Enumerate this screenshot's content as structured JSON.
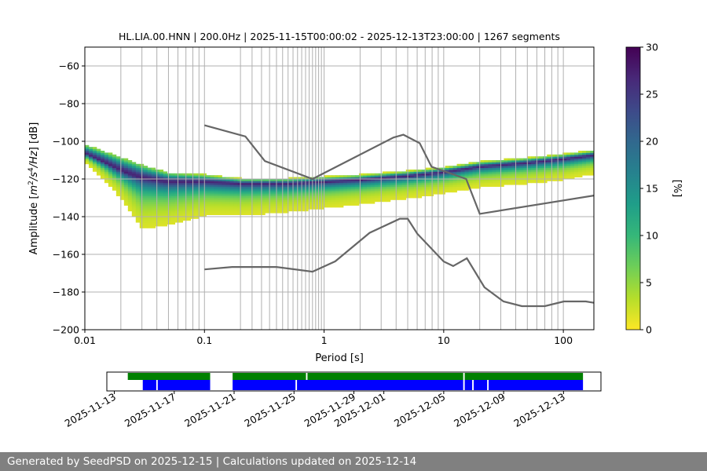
{
  "chart_data": [
    {
      "type": "heatmap",
      "title": "HL.LIA.00.HNN | 200.0Hz | 2025-11-15T00:00:02 - 2025-12-13T23:00:00 | 1267 segments",
      "xlabel": "Period [s]",
      "ylabel_parts": [
        "Amplitude [",
        "m",
        "2",
        "/s",
        "4",
        "/Hz",
        "] [dB]"
      ],
      "xscale": "log",
      "xlim": [
        0.01,
        180
      ],
      "ylim": [
        -200,
        -50
      ],
      "x_ticks": [
        {
          "value": 0.01,
          "label": "0.01"
        },
        {
          "value": 0.1,
          "label": "0.1"
        },
        {
          "value": 1,
          "label": "1"
        },
        {
          "value": 10,
          "label": "10"
        },
        {
          "value": 100,
          "label": "100"
        }
      ],
      "y_ticks": [
        {
          "value": -60,
          "label": "−60"
        },
        {
          "value": -80,
          "label": "−80"
        },
        {
          "value": -100,
          "label": "−100"
        },
        {
          "value": -120,
          "label": "−120"
        },
        {
          "value": -140,
          "label": "−140"
        },
        {
          "value": -160,
          "label": "−160"
        },
        {
          "value": -180,
          "label": "−180"
        },
        {
          "value": -200,
          "label": "−200"
        }
      ],
      "grid": true,
      "colorbar": {
        "label": "[%]",
        "range": [
          0,
          30
        ],
        "ticks": [
          {
            "value": 0,
            "label": "0"
          },
          {
            "value": 5,
            "label": "5"
          },
          {
            "value": 10,
            "label": "10"
          },
          {
            "value": 15,
            "label": "15"
          },
          {
            "value": 20,
            "label": "20"
          },
          {
            "value": 25,
            "label": "25"
          },
          {
            "value": 30,
            "label": "30"
          }
        ],
        "colors": [
          "#fde725",
          "#b5de2b",
          "#6ece58",
          "#35b779",
          "#1f9e89",
          "#26828e",
          "#31688e",
          "#3e4989",
          "#482878",
          "#440154"
        ]
      },
      "psd_density": {
        "description": "Probabilistic PSD: modal amplitude vs period with spread and percent occurrence",
        "mode_curve": [
          {
            "period": 0.01,
            "amp": -107,
            "spread_lo": 4,
            "spread_hi": 4
          },
          {
            "period": 0.015,
            "amp": -112,
            "spread_lo": 5,
            "spread_hi": 9
          },
          {
            "period": 0.02,
            "amp": -116,
            "spread_lo": 6,
            "spread_hi": 14
          },
          {
            "period": 0.03,
            "amp": -120,
            "spread_lo": 6,
            "spread_hi": 26
          },
          {
            "period": 0.05,
            "amp": -122,
            "spread_lo": 4,
            "spread_hi": 22
          },
          {
            "period": 0.1,
            "amp": -122,
            "spread_lo": 3,
            "spread_hi": 17
          },
          {
            "period": 0.2,
            "amp": -123,
            "spread_lo": 2,
            "spread_hi": 16
          },
          {
            "period": 0.5,
            "amp": -123,
            "spread_lo": 2,
            "spread_hi": 14
          },
          {
            "period": 1,
            "amp": -122,
            "spread_lo": 2,
            "spread_hi": 13
          },
          {
            "period": 2,
            "amp": -121,
            "spread_lo": 2,
            "spread_hi": 12
          },
          {
            "period": 5,
            "amp": -119,
            "spread_lo": 2,
            "spread_hi": 11
          },
          {
            "period": 10,
            "amp": -117,
            "spread_lo": 2,
            "spread_hi": 10
          },
          {
            "period": 20,
            "amp": -114,
            "spread_lo": 2,
            "spread_hi": 10
          },
          {
            "period": 50,
            "amp": -112,
            "spread_lo": 2,
            "spread_hi": 10
          },
          {
            "period": 100,
            "amp": -110,
            "spread_lo": 2,
            "spread_hi": 10
          },
          {
            "period": 180,
            "amp": -108,
            "spread_lo": 2,
            "spread_hi": 9
          }
        ],
        "upper_envelope_bumps": [
          {
            "period": 0.03,
            "amp": -84
          },
          {
            "period": 0.5,
            "amp": -92
          },
          {
            "period": 20,
            "amp": -88
          }
        ]
      },
      "series": [
        {
          "name": "NHNM",
          "color": "#666666",
          "points": [
            [
              0.1,
              -91.5
            ],
            [
              0.22,
              -97.4
            ],
            [
              0.32,
              -110.5
            ],
            [
              0.8,
              -120
            ],
            [
              3.8,
              -98
            ],
            [
              4.6,
              -96.5
            ],
            [
              6.3,
              -101
            ],
            [
              7.9,
              -113.5
            ],
            [
              15.4,
              -120
            ],
            [
              20,
              -138.5
            ],
            [
              180,
              -128.8
            ]
          ]
        },
        {
          "name": "NLNM",
          "color": "#666666",
          "points": [
            [
              0.1,
              -168
            ],
            [
              0.17,
              -166.7
            ],
            [
              0.4,
              -166.7
            ],
            [
              0.8,
              -169.2
            ],
            [
              1.24,
              -163.7
            ],
            [
              2.4,
              -148.6
            ],
            [
              4.3,
              -141.1
            ],
            [
              5.0,
              -141.1
            ],
            [
              6.0,
              -149
            ],
            [
              10,
              -163.8
            ],
            [
              12,
              -166.2
            ],
            [
              15.6,
              -162.1
            ],
            [
              21.9,
              -177.5
            ],
            [
              31.6,
              -185
            ],
            [
              45,
              -187.5
            ],
            [
              70,
              -187.5
            ],
            [
              101,
              -185
            ],
            [
              154,
              -185
            ],
            [
              180,
              -185.7
            ]
          ]
        }
      ],
      "period_grid_lines": [
        0.02,
        0.03,
        0.04,
        0.05,
        0.06,
        0.07,
        0.08,
        0.09,
        0.1,
        0.2,
        0.25,
        0.3,
        0.35,
        0.4,
        0.45,
        0.5,
        0.55,
        0.6,
        0.65,
        0.7,
        0.75,
        0.8,
        0.85,
        0.9,
        0.95,
        1,
        2,
        3,
        4,
        5,
        6,
        7,
        8,
        9,
        10,
        20,
        30,
        40,
        50,
        60,
        70,
        80,
        90,
        100
      ]
    },
    {
      "type": "timeline",
      "x_ticks": [
        "2025-11-13",
        "2025-11-17",
        "2025-11-21",
        "2025-11-25",
        "2025-11-29",
        "2025-12-01",
        "2025-12-05",
        "2025-12-09",
        "2025-12-13"
      ],
      "x_tick_days": [
        0,
        4,
        8,
        12,
        16,
        18,
        22,
        26,
        30
      ],
      "xlim_days": [
        -0.5,
        32.5
      ],
      "green_segments_days": [
        [
          0.9,
          6.4
        ],
        [
          7.9,
          12.8
        ],
        [
          12.9,
          23.3
        ],
        [
          23.4,
          31.3
        ]
      ],
      "blue_segments_days": [
        [
          1.9,
          2.8
        ],
        [
          2.9,
          6.4
        ],
        [
          7.9,
          12.1
        ],
        [
          12.2,
          23.3
        ],
        [
          23.4,
          23.9
        ],
        [
          24.0,
          24.9
        ],
        [
          25.0,
          31.3
        ]
      ],
      "colors": {
        "green": "#008000",
        "blue": "#0000ff"
      }
    }
  ],
  "footer": {
    "text": "Generated by SeedPSD on 2025-12-15 | Calculations updated on 2025-12-14"
  }
}
